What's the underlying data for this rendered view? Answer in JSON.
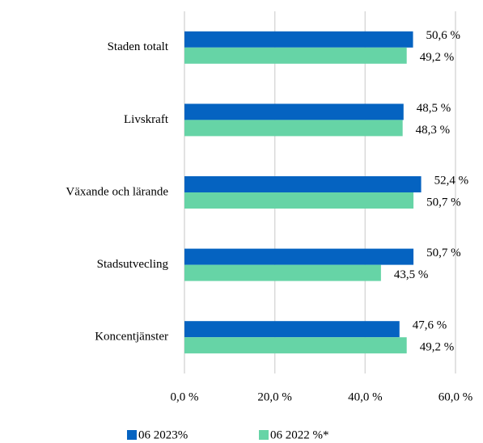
{
  "chart_data": {
    "type": "hbar",
    "categories": [
      "Staden totalt",
      "Livskraft",
      "Växande och lärande",
      "Stadsutvecling",
      "Koncentjänster"
    ],
    "series": [
      {
        "name": "06 2023%",
        "color": "#0563c1",
        "values": [
          50.6,
          48.5,
          52.4,
          50.7,
          47.6
        ],
        "value_labels": [
          "50,6 %",
          "48,5 %",
          "52,4 %",
          "50,7 %",
          "47,6 %"
        ]
      },
      {
        "name": "06 2022 %*",
        "color": "#66d4a6",
        "values": [
          49.2,
          48.3,
          50.7,
          43.5,
          49.2
        ],
        "value_labels": [
          "49,2 %",
          "48,3 %",
          "50,7 %",
          "43,5 %",
          "49,2 %"
        ]
      }
    ],
    "xlim": [
      0,
      60
    ],
    "xticks": [
      {
        "value": 0,
        "label": "0,0 %"
      },
      {
        "value": 20,
        "label": "20,0 %"
      },
      {
        "value": 40,
        "label": "40,0 %"
      },
      {
        "value": 60,
        "label": "60,0 %"
      }
    ],
    "grid": true,
    "legend": "bottom"
  }
}
